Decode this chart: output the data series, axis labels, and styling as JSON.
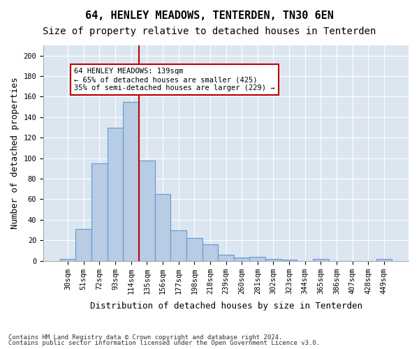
{
  "title": "64, HENLEY MEADOWS, TENTERDEN, TN30 6EN",
  "subtitle": "Size of property relative to detached houses in Tenterden",
  "xlabel": "Distribution of detached houses by size in Tenterden",
  "ylabel": "Number of detached properties",
  "categories": [
    "30sqm",
    "51sqm",
    "72sqm",
    "93sqm",
    "114sqm",
    "135sqm",
    "156sqm",
    "177sqm",
    "198sqm",
    "218sqm",
    "239sqm",
    "260sqm",
    "281sqm",
    "302sqm",
    "323sqm",
    "344sqm",
    "365sqm",
    "386sqm",
    "407sqm",
    "428sqm",
    "449sqm"
  ],
  "bar_heights": [
    2,
    31,
    95,
    130,
    155,
    98,
    65,
    30,
    22,
    16,
    6,
    3,
    4,
    2,
    1,
    0,
    2,
    0,
    0,
    0,
    2
  ],
  "bar_color": "#b8cce4",
  "bar_edge_color": "#5b9bd5",
  "vline_x_index": 5,
  "vline_color": "#c00000",
  "annotation_text": "64 HENLEY MEADOWS: 139sqm\n← 65% of detached houses are smaller (425)\n35% of semi-detached houses are larger (229) →",
  "annotation_box_color": "#ffffff",
  "annotation_box_edge": "#c00000",
  "ylim": [
    0,
    210
  ],
  "yticks": [
    0,
    20,
    40,
    60,
    80,
    100,
    120,
    140,
    160,
    180,
    200
  ],
  "plot_bg_color": "#dce6f1",
  "footer_line1": "Contains HM Land Registry data © Crown copyright and database right 2024.",
  "footer_line2": "Contains public sector information licensed under the Open Government Licence v3.0.",
  "title_fontsize": 11,
  "subtitle_fontsize": 10,
  "tick_fontsize": 7.5,
  "ylabel_fontsize": 9,
  "xlabel_fontsize": 9,
  "footer_fontsize": 6.5
}
